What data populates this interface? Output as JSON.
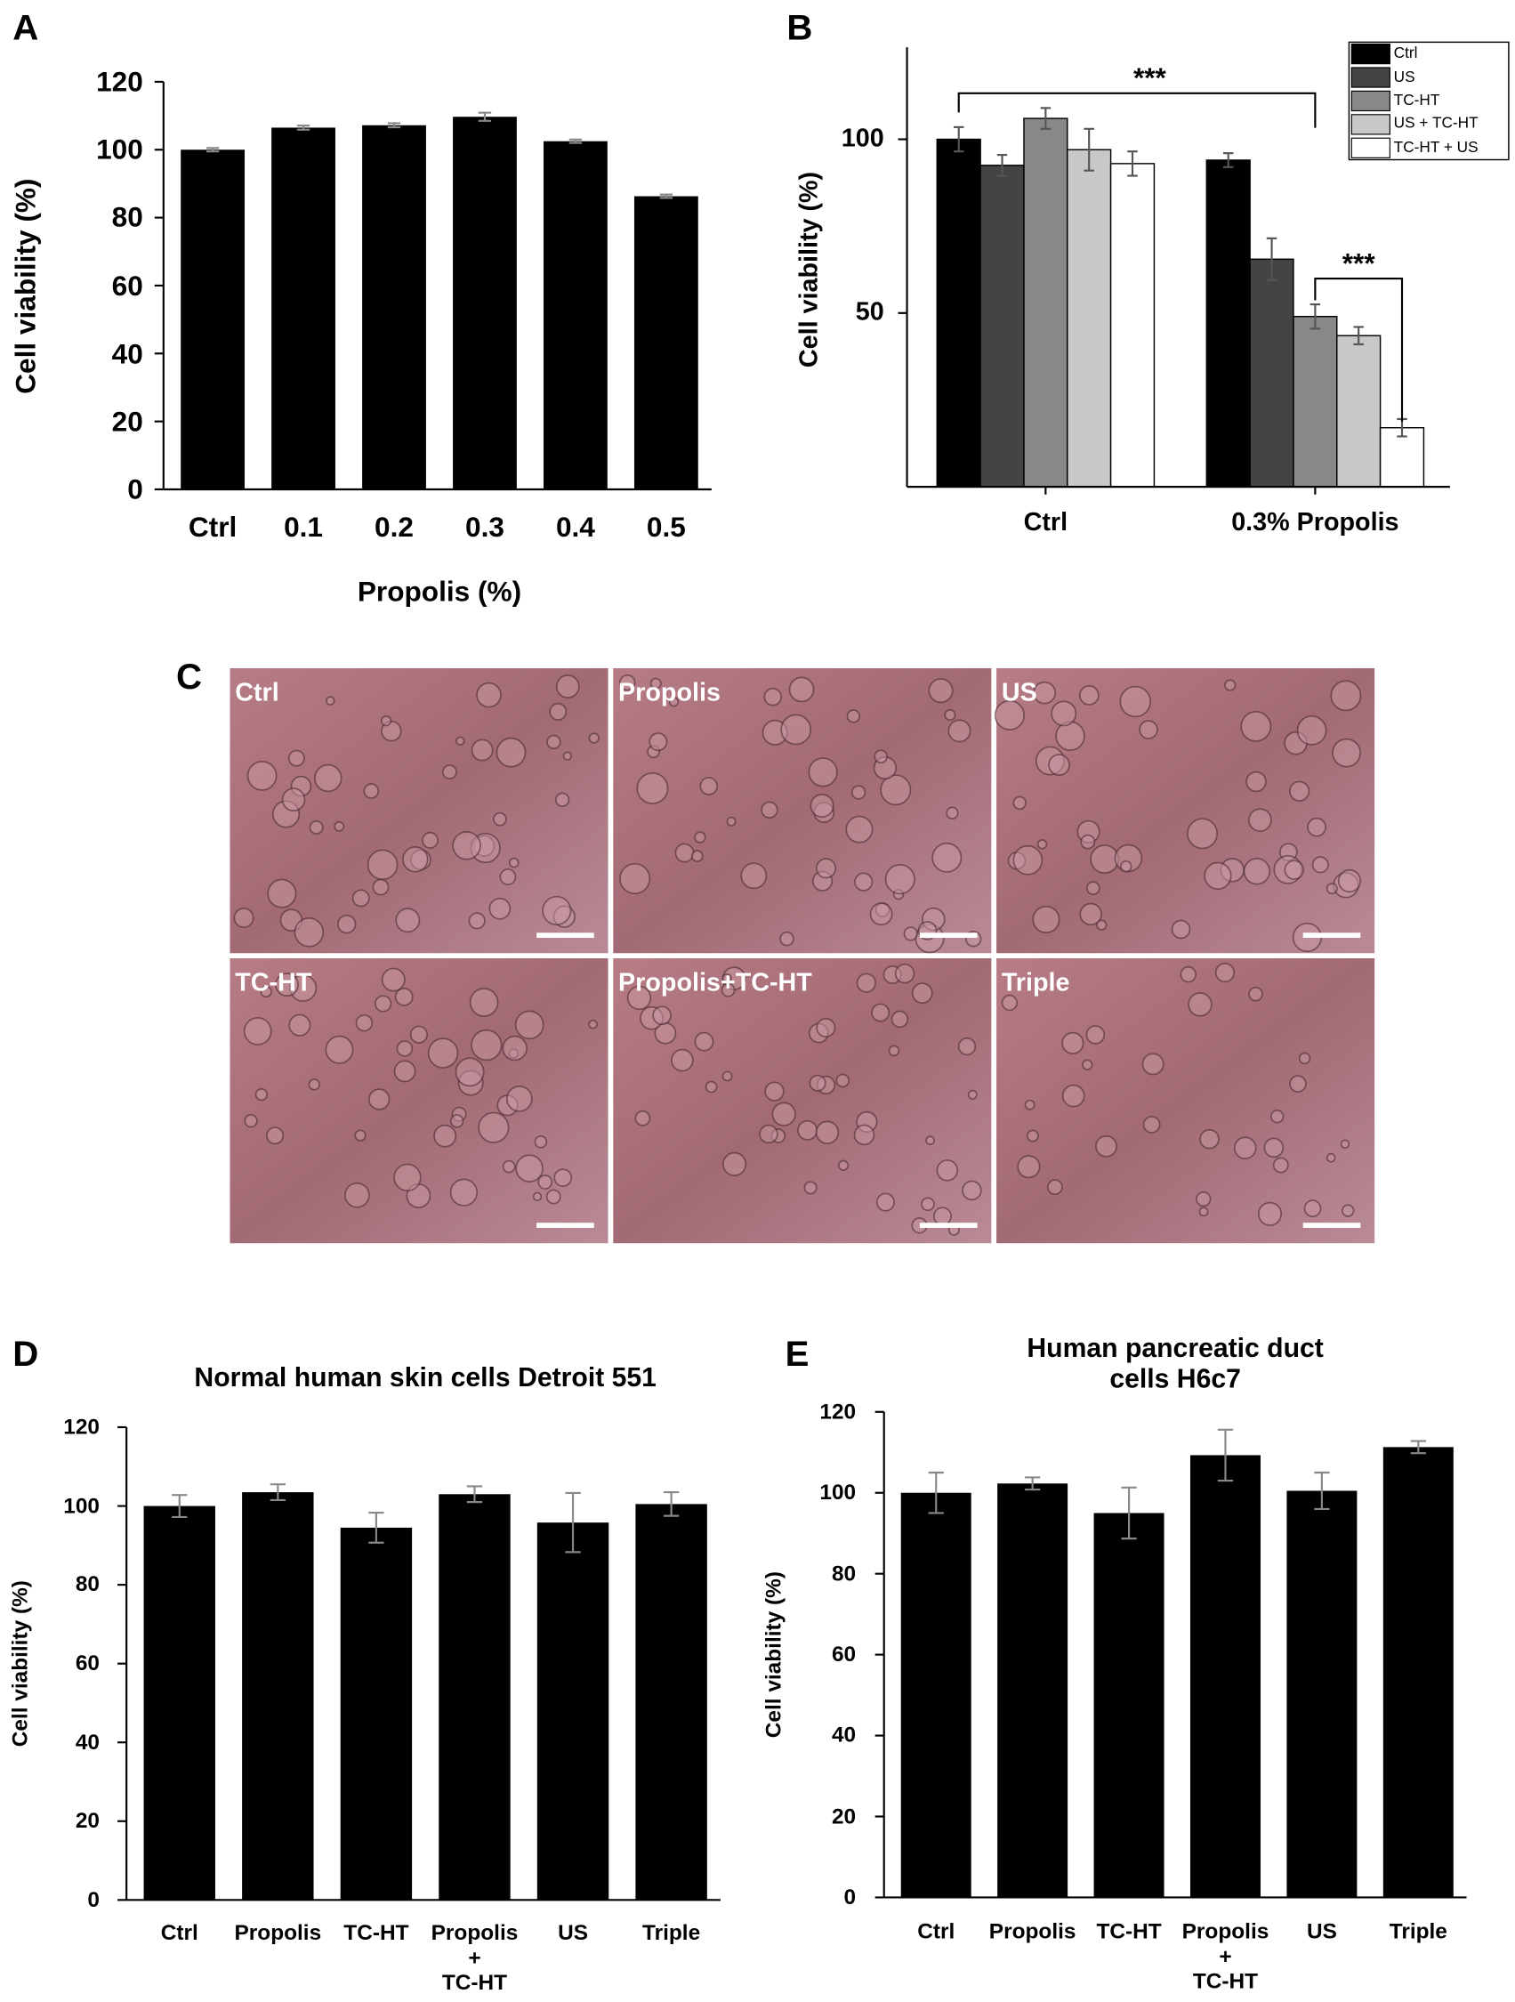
{
  "chart_data": [
    {
      "panel_label": "A",
      "type": "bar",
      "categories": [
        "Ctrl",
        "0.1",
        "0.2",
        "0.3",
        "0.4",
        "0.5"
      ],
      "values": [
        100,
        106.5,
        107.2,
        109.7,
        102.5,
        86.3
      ],
      "errors": [
        0.5,
        0.6,
        0.6,
        1.2,
        0.5,
        0.5
      ],
      "color": "#000000",
      "error_color": "#888888",
      "ylim": [
        0,
        120
      ],
      "yticks": [
        0,
        20,
        40,
        60,
        80,
        100,
        120
      ],
      "xlabel": "Propolis (%)",
      "ylabel": "Cell viability (%)"
    },
    {
      "panel_label": "B",
      "type": "grouped_bar",
      "categories": [
        "Ctrl",
        "0.3% Propolis"
      ],
      "series": [
        {
          "name": "Ctrl",
          "color": "#000000",
          "values": [
            100,
            94
          ],
          "errors": [
            3.5,
            2
          ]
        },
        {
          "name": "US",
          "color": "#444444",
          "values": [
            92.5,
            65.5
          ],
          "errors": [
            3,
            6
          ]
        },
        {
          "name": "TC-HT",
          "color": "#888888",
          "values": [
            106,
            49
          ],
          "errors": [
            3,
            3.5
          ]
        },
        {
          "name": "US +  TC-HT",
          "color": "#c8c8c8",
          "values": [
            97,
            43.5
          ],
          "errors": [
            6,
            2.5
          ]
        },
        {
          "name": "TC-HT + US",
          "color": "#ffffff",
          "values": [
            93,
            17
          ],
          "errors": [
            3.5,
            2.5
          ]
        }
      ],
      "error_color": "#555555",
      "ylim": [
        0,
        125
      ],
      "yticks": [
        50,
        100
      ],
      "ylabel": "Cell viability (%)",
      "legend": "upper right",
      "annotations": [
        "***",
        "***"
      ]
    },
    {
      "panel_label": "D",
      "type": "bar",
      "title": "Normal human skin cells Detroit 551",
      "categories": [
        "Ctrl",
        "Propolis",
        "TC-HT",
        "Propolis\n+\nTC-HT",
        "US",
        "Triple"
      ],
      "values": [
        100,
        103.5,
        94.5,
        103,
        95.8,
        100.5
      ],
      "errors": [
        2.8,
        2,
        3.8,
        2,
        7.5,
        3
      ],
      "color": "#000000",
      "error_color": "#888888",
      "ylim": [
        0,
        120
      ],
      "yticks": [
        0,
        20,
        40,
        60,
        80,
        100,
        120
      ],
      "ylabel": "Cell viability (%)"
    },
    {
      "panel_label": "E",
      "type": "bar",
      "title": "Human pancreatic duct cells H6c7",
      "categories": [
        "Ctrl",
        "Propolis",
        "TC-HT",
        "Propolis\n+\nTC-HT",
        "US",
        "Triple"
      ],
      "values": [
        100,
        102.3,
        95,
        109.3,
        100.5,
        111.3
      ],
      "errors": [
        5,
        1.5,
        6.3,
        6.3,
        4.5,
        1.5
      ],
      "color": "#000000",
      "error_color": "#888888",
      "ylim": [
        0,
        120
      ],
      "yticks": [
        0,
        20,
        40,
        60,
        80,
        100,
        120
      ],
      "ylabel": "Cell viability (%)"
    }
  ],
  "micrographs": {
    "panel_label": "C",
    "labels": [
      "Ctrl",
      "Propolis",
      "US",
      "TC-HT",
      "Propolis+TC-HT",
      "Triple"
    ]
  }
}
